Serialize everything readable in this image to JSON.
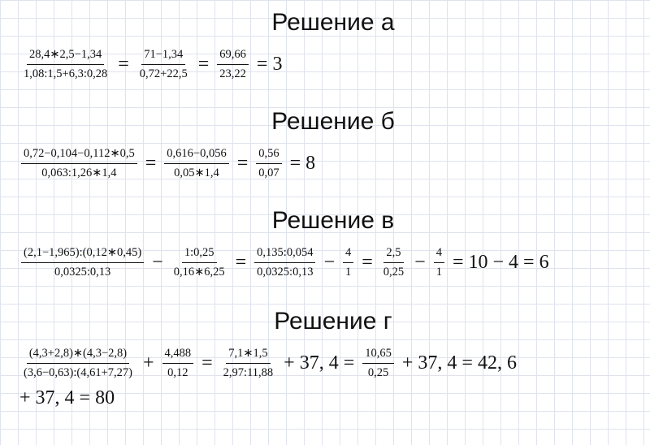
{
  "sections": [
    {
      "title": "Решение а",
      "lines": [
        [
          {
            "num": "28,4∗2,5−1,34",
            "den": "1,08:1,5+6,3:0,28"
          },
          {
            "text": "="
          },
          {
            "num": "71−1,34",
            "den": "0,72+22,5"
          },
          {
            "text": "="
          },
          {
            "num": "69,66",
            "den": "23,22"
          },
          {
            "text": "= 3"
          }
        ]
      ]
    },
    {
      "title": "Решение б",
      "lines": [
        [
          {
            "num": "0,72−0,104−0,112∗0,5",
            "den": "0,063:1,26∗1,4"
          },
          {
            "text": "="
          },
          {
            "num": "0,616−0,056",
            "den": "0,05∗1,4"
          },
          {
            "text": "="
          },
          {
            "num": "0,56",
            "den": "0,07"
          },
          {
            "text": "= 8"
          }
        ]
      ]
    },
    {
      "title": "Решение в",
      "lines": [
        [
          {
            "num": "(2,1−1,965):(0,12∗0,45)",
            "den": "0,0325:0,13"
          },
          {
            "text": "−"
          },
          {
            "num": "1:0,25",
            "den": "0,16∗6,25"
          },
          {
            "text": "="
          },
          {
            "num": "0,135:0,054",
            "den": "0,0325:0,13"
          },
          {
            "text": "−"
          },
          {
            "num": "4",
            "den": "1"
          },
          {
            "text": "="
          },
          {
            "num": "2,5",
            "den": "0,25"
          },
          {
            "text": "−"
          },
          {
            "num": "4",
            "den": "1"
          },
          {
            "text": "= 10 − 4 = 6"
          }
        ]
      ]
    },
    {
      "title": "Решение г",
      "lines": [
        [
          {
            "num": "(4,3+2,8)∗(4,3−2,8)",
            "den": "(3,6−0,63):(4,61+7,27)"
          },
          {
            "text": "+"
          },
          {
            "num": "4,488",
            "den": "0,12"
          },
          {
            "text": "="
          },
          {
            "num": "7,1∗1,5",
            "den": "2,97:11,88"
          },
          {
            "text": "+ 37, 4 ="
          },
          {
            "num": "10,65",
            "den": "0,25"
          },
          {
            "text": "+ 37, 4 = 42, 6"
          }
        ],
        [
          {
            "text": "+ 37, 4 = 80"
          }
        ]
      ]
    }
  ]
}
